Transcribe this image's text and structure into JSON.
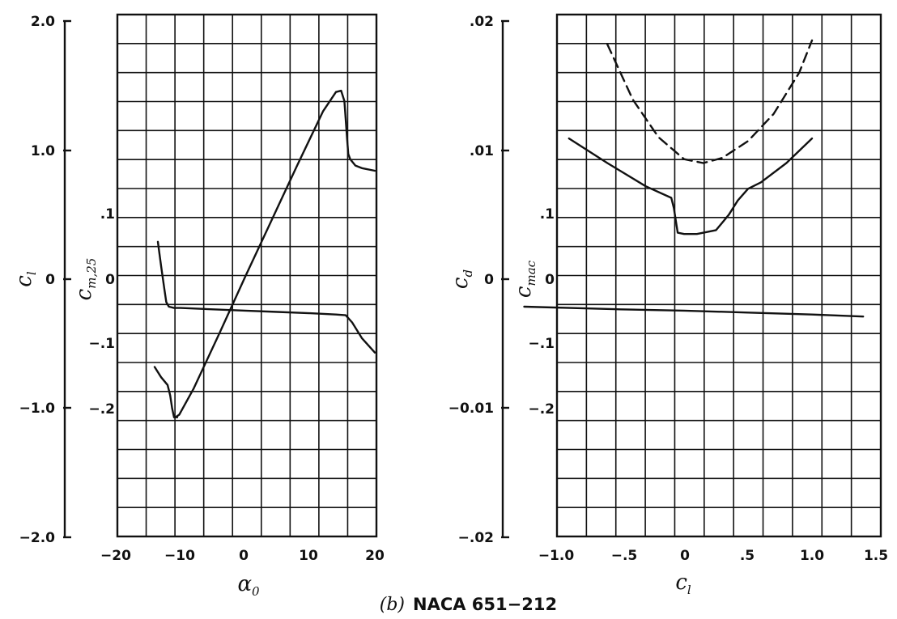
{
  "chart_data": [
    {
      "type": "line",
      "panel": "left",
      "xlabel": "α0",
      "ylabel_outer": "cl",
      "ylabel_inner": "cm,25",
      "xlim": [
        -25,
        20
      ],
      "ylim_outer": [
        -2.0,
        2.0
      ],
      "ylim_inner": [
        -0.4,
        0.3
      ],
      "xticks": [
        "−20",
        "−10",
        "0",
        "10",
        "20"
      ],
      "yticks_outer": [
        "2.0",
        "1.0",
        "0",
        "−1.0",
        "−2.0"
      ],
      "yticks_inner": [
        ".1",
        "0",
        "−.1",
        "−.2"
      ],
      "series": [
        {
          "axis": "outer",
          "style": "solid",
          "x": [
            -10.8,
            -10.2,
            -8,
            -4,
            0,
            4,
            8,
            12,
            14,
            14.8,
            15.3,
            15.7,
            15.9,
            16.2,
            17,
            18,
            20
          ],
          "y": [
            -1.07,
            -1.05,
            -0.85,
            -0.42,
            0.02,
            0.45,
            0.88,
            1.3,
            1.45,
            1.46,
            1.38,
            1.1,
            0.97,
            0.93,
            0.88,
            0.86,
            0.84
          ]
        },
        {
          "axis": "inner",
          "style": "solid",
          "x": [
            -13.5,
            -13,
            -12.5,
            -12.2,
            -11.8,
            -11,
            -10,
            -5,
            0,
            5,
            10,
            14,
            15.5,
            16.5,
            18,
            20
          ],
          "y": [
            0.057,
            0.02,
            -0.015,
            -0.035,
            -0.042,
            -0.044,
            -0.044,
            -0.046,
            -0.048,
            -0.05,
            -0.052,
            -0.054,
            -0.055,
            -0.066,
            -0.09,
            -0.112
          ]
        },
        {
          "axis": "outer",
          "style": "solid",
          "x": [
            -14,
            -13,
            -12,
            -11.6,
            -11.3,
            -11,
            -10.5
          ],
          "y": [
            -0.68,
            -0.76,
            -0.82,
            -0.9,
            -1.0,
            -1.07,
            -1.07
          ]
        }
      ]
    },
    {
      "type": "line",
      "panel": "right",
      "xlabel": "cl",
      "ylabel_outer": "cd",
      "ylabel_inner": "cmac",
      "xlim": [
        -1.25,
        1.5
      ],
      "ylim_outer": [
        -0.02,
        0.02
      ],
      "ylim_inner": [
        -0.4,
        0.3
      ],
      "xticks": [
        "−1.0",
        "−.5",
        "0",
        ".5",
        "1.0",
        "1.5"
      ],
      "yticks_outer": [
        ".02",
        ".01",
        "0",
        "−0.01",
        "−.02"
      ],
      "yticks_inner": [
        ".1",
        "0",
        "−.1",
        "−.2"
      ],
      "series": [
        {
          "axis": "outer",
          "style": "dashed",
          "x": [
            -0.6,
            -0.4,
            -0.2,
            0,
            0.15,
            0.3,
            0.5,
            0.7,
            0.9,
            1.0
          ],
          "y": [
            0.0182,
            0.0139,
            0.011,
            0.0093,
            0.009,
            0.0094,
            0.0107,
            0.0128,
            0.016,
            0.0185
          ]
        },
        {
          "axis": "outer",
          "style": "solid",
          "x": [
            -0.9,
            -0.6,
            -0.3,
            -0.1,
            -0.08,
            -0.05,
            0,
            0.1,
            0.25,
            0.35,
            0.42,
            0.5,
            0.6,
            0.8,
            1.0
          ],
          "y": [
            0.0109,
            0.009,
            0.0072,
            0.0063,
            0.0055,
            0.0036,
            0.0035,
            0.0035,
            0.0038,
            0.005,
            0.0061,
            0.007,
            0.0075,
            0.009,
            0.0109
          ]
        },
        {
          "axis": "inner",
          "style": "solid",
          "x": [
            -1.25,
            -0.5,
            0,
            0.5,
            1.0,
            1.4
          ],
          "y": [
            -0.042,
            -0.046,
            -0.048,
            -0.051,
            -0.054,
            -0.057
          ]
        }
      ]
    }
  ],
  "caption": {
    "prefix": "(b)",
    "name": "NACA 651−212"
  }
}
